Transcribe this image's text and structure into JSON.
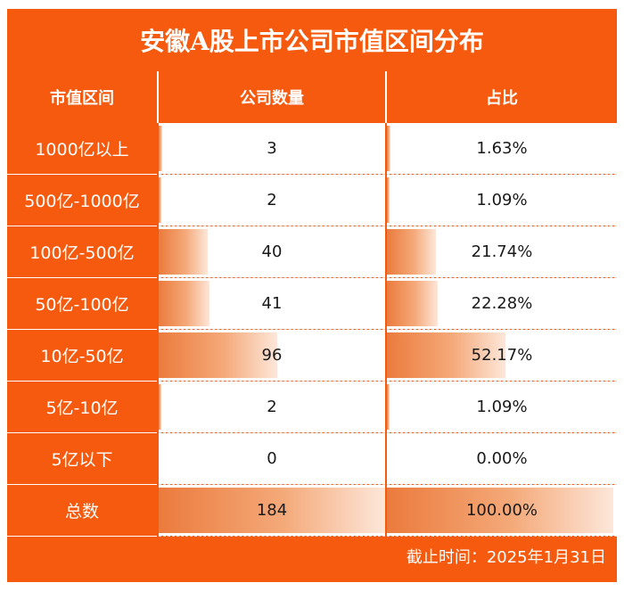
{
  "title": "安徽A股上市公司市值区间分布",
  "headers": {
    "range": "市值区间",
    "count": "公司数量",
    "share": "占比"
  },
  "footer": "截止时间：2025年1月31日",
  "colors": {
    "accent": "#f55a0f",
    "bar": "#eb7b3d"
  },
  "chart_data": {
    "type": "table",
    "title": "安徽A股上市公司市值区间分布",
    "columns": [
      "市值区间",
      "公司数量",
      "占比"
    ],
    "rows": [
      {
        "range": "1000亿以上",
        "count": 3,
        "count_label": "3",
        "share": 1.63,
        "share_label": "1.63%"
      },
      {
        "range": "500亿-1000亿",
        "count": 2,
        "count_label": "2",
        "share": 1.09,
        "share_label": "1.09%"
      },
      {
        "range": "100亿-500亿",
        "count": 40,
        "count_label": "40",
        "share": 21.74,
        "share_label": "21.74%"
      },
      {
        "range": "50亿-100亿",
        "count": 41,
        "count_label": "41",
        "share": 22.28,
        "share_label": "22.28%"
      },
      {
        "range": "10亿-50亿",
        "count": 96,
        "count_label": "96",
        "share": 52.17,
        "share_label": "52.17%"
      },
      {
        "range": "5亿-10亿",
        "count": 2,
        "count_label": "2",
        "share": 1.09,
        "share_label": "1.09%"
      },
      {
        "range": "5亿以下",
        "count": 0,
        "count_label": "0",
        "share": 0.0,
        "share_label": "0.00%"
      }
    ],
    "total": {
      "range": "总数",
      "count": 184,
      "count_label": "184",
      "share": 100.0,
      "share_label": "100.00%"
    }
  }
}
